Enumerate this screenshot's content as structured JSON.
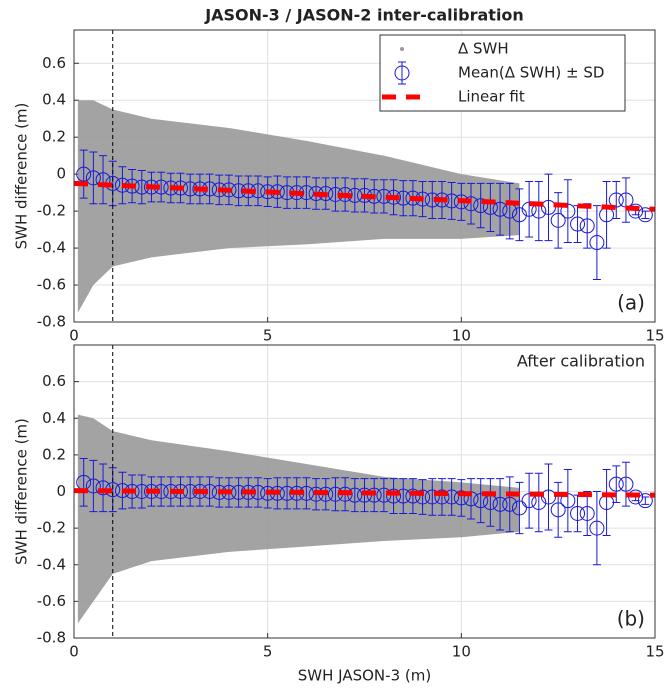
{
  "chart_data": [
    {
      "type": "scatter",
      "title": "JASON-3 / JASON-2 inter-calibration",
      "ylabel": "SWH difference (m)",
      "xlim": [
        0,
        15
      ],
      "xticks": [
        0,
        5,
        10,
        15
      ],
      "ylim": [
        -0.8,
        0.78
      ],
      "yticks": [
        -0.8,
        -0.6,
        -0.4,
        -0.2,
        0,
        0.2,
        0.4,
        0.6
      ],
      "grid": true,
      "vline": 1,
      "legend": "upper right",
      "annotations": [
        "(a)"
      ],
      "series": [
        {
          "type": "area",
          "name": "Δ SWH",
          "color": "#999999",
          "x": [
            0.1,
            0.5,
            1,
            2,
            4,
            6,
            8,
            10,
            11.5
          ],
          "upper": [
            0.4,
            0.4,
            0.35,
            0.3,
            0.25,
            0.18,
            0.1,
            0.0,
            -0.05
          ],
          "lower": [
            -0.75,
            -0.6,
            -0.5,
            -0.45,
            -0.4,
            -0.38,
            -0.35,
            -0.35,
            -0.33
          ]
        },
        {
          "type": "errorbar",
          "name": "Mean(Δ SWH) ± SD",
          "color": "#1a1ad6",
          "x": [
            0.25,
            0.5,
            0.75,
            1,
            1.25,
            1.5,
            1.75,
            2,
            2.25,
            2.5,
            2.75,
            3,
            3.25,
            3.5,
            3.75,
            4,
            4.25,
            4.5,
            4.75,
            5,
            5.25,
            5.5,
            5.75,
            6,
            6.25,
            6.5,
            6.75,
            7,
            7.25,
            7.5,
            7.75,
            8,
            8.25,
            8.5,
            8.75,
            9,
            9.25,
            9.5,
            9.75,
            10,
            10.25,
            10.5,
            10.75,
            11,
            11.25,
            11.5,
            11.75,
            12,
            12.25,
            12.5,
            12.75,
            13,
            13.25,
            13.5,
            13.75,
            14,
            14.25,
            14.5,
            14.75
          ],
          "values": [
            0.0,
            -0.02,
            -0.03,
            -0.05,
            -0.06,
            -0.065,
            -0.07,
            -0.07,
            -0.07,
            -0.075,
            -0.075,
            -0.08,
            -0.08,
            -0.08,
            -0.085,
            -0.085,
            -0.09,
            -0.09,
            -0.09,
            -0.095,
            -0.095,
            -0.1,
            -0.1,
            -0.1,
            -0.105,
            -0.105,
            -0.11,
            -0.11,
            -0.115,
            -0.115,
            -0.12,
            -0.12,
            -0.125,
            -0.13,
            -0.13,
            -0.135,
            -0.14,
            -0.14,
            -0.145,
            -0.15,
            -0.16,
            -0.17,
            -0.18,
            -0.19,
            -0.2,
            -0.22,
            -0.19,
            -0.2,
            -0.18,
            -0.25,
            -0.2,
            -0.27,
            -0.28,
            -0.37,
            -0.22,
            -0.14,
            -0.14,
            -0.2,
            -0.22
          ],
          "errors": [
            0.13,
            0.14,
            0.13,
            0.12,
            0.1,
            0.09,
            0.09,
            0.08,
            0.08,
            0.08,
            0.08,
            0.08,
            0.08,
            0.08,
            0.08,
            0.08,
            0.08,
            0.08,
            0.08,
            0.08,
            0.085,
            0.085,
            0.085,
            0.085,
            0.085,
            0.085,
            0.09,
            0.09,
            0.09,
            0.09,
            0.09,
            0.09,
            0.095,
            0.095,
            0.095,
            0.095,
            0.1,
            0.1,
            0.1,
            0.1,
            0.11,
            0.12,
            0.13,
            0.14,
            0.15,
            0.14,
            0.15,
            0.16,
            0.18,
            0.15,
            0.17,
            0.1,
            0.12,
            0.2,
            0.18,
            0.1,
            0.12,
            0.02,
            0.02
          ]
        },
        {
          "type": "line",
          "name": "Linear fit",
          "color": "#ff0000",
          "x": [
            0,
            15
          ],
          "values": [
            -0.05,
            -0.19
          ]
        }
      ]
    },
    {
      "type": "scatter",
      "xlabel": "SWH JASON-3 (m)",
      "ylabel": "SWH difference (m)",
      "xlim": [
        0,
        15
      ],
      "xticks": [
        0,
        5,
        10,
        15
      ],
      "ylim": [
        -0.8,
        0.8
      ],
      "yticks": [
        -0.8,
        -0.6,
        -0.4,
        -0.2,
        0,
        0.2,
        0.4,
        0.6
      ],
      "grid": true,
      "vline": 1,
      "annotations": [
        "After calibration",
        "(b)"
      ],
      "series": [
        {
          "type": "area",
          "color": "#999999",
          "x": [
            0.1,
            0.5,
            1,
            2,
            4,
            6,
            8,
            10,
            11.5
          ],
          "upper": [
            0.42,
            0.4,
            0.33,
            0.28,
            0.22,
            0.15,
            0.08,
            0.05,
            0.02
          ],
          "lower": [
            -0.72,
            -0.6,
            -0.45,
            -0.38,
            -0.33,
            -0.3,
            -0.27,
            -0.25,
            -0.22
          ]
        },
        {
          "type": "errorbar",
          "color": "#1a1ad6",
          "x": [
            0.25,
            0.5,
            0.75,
            1,
            1.25,
            1.5,
            1.75,
            2,
            2.25,
            2.5,
            2.75,
            3,
            3.25,
            3.5,
            3.75,
            4,
            4.25,
            4.5,
            4.75,
            5,
            5.25,
            5.5,
            5.75,
            6,
            6.25,
            6.5,
            6.75,
            7,
            7.25,
            7.5,
            7.75,
            8,
            8.25,
            8.5,
            8.75,
            9,
            9.25,
            9.5,
            9.75,
            10,
            10.25,
            10.5,
            10.75,
            11,
            11.25,
            11.5,
            11.75,
            12,
            12.25,
            12.5,
            12.75,
            13,
            13.25,
            13.5,
            13.75,
            14,
            14.25,
            14.5,
            14.75
          ],
          "values": [
            0.05,
            0.03,
            0.02,
            0.01,
            0.005,
            0.0,
            0.0,
            0.0,
            0.0,
            0.0,
            0.0,
            0.0,
            0.0,
            0.0,
            -0.005,
            -0.005,
            -0.005,
            -0.005,
            -0.005,
            -0.01,
            -0.01,
            -0.01,
            -0.01,
            -0.01,
            -0.015,
            -0.015,
            -0.015,
            -0.015,
            -0.02,
            -0.02,
            -0.02,
            -0.02,
            -0.025,
            -0.025,
            -0.025,
            -0.03,
            -0.03,
            -0.03,
            -0.03,
            -0.035,
            -0.04,
            -0.05,
            -0.06,
            -0.07,
            -0.07,
            -0.09,
            -0.05,
            -0.06,
            -0.03,
            -0.1,
            -0.05,
            -0.12,
            -0.12,
            -0.2,
            -0.06,
            0.04,
            0.04,
            -0.03,
            -0.05
          ],
          "errors": [
            0.13,
            0.14,
            0.13,
            0.12,
            0.1,
            0.09,
            0.09,
            0.08,
            0.08,
            0.08,
            0.08,
            0.08,
            0.08,
            0.08,
            0.08,
            0.08,
            0.08,
            0.08,
            0.08,
            0.08,
            0.085,
            0.085,
            0.085,
            0.085,
            0.085,
            0.085,
            0.09,
            0.09,
            0.09,
            0.09,
            0.09,
            0.09,
            0.095,
            0.095,
            0.095,
            0.095,
            0.1,
            0.1,
            0.1,
            0.1,
            0.11,
            0.12,
            0.13,
            0.14,
            0.15,
            0.14,
            0.15,
            0.16,
            0.18,
            0.15,
            0.17,
            0.1,
            0.12,
            0.2,
            0.18,
            0.1,
            0.12,
            0.02,
            0.02
          ]
        },
        {
          "type": "line",
          "color": "#ff0000",
          "x": [
            0,
            15
          ],
          "values": [
            0.005,
            -0.02
          ]
        }
      ]
    }
  ]
}
